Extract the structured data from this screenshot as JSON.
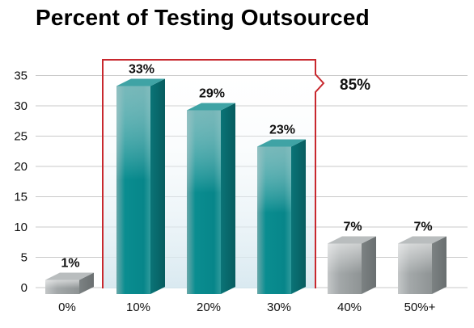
{
  "chart_data": {
    "type": "bar",
    "title": "Percent of Testing Outsourced",
    "xlabel": "",
    "ylabel": "",
    "categories": [
      "0%",
      "10%",
      "20%",
      "30%",
      "40%",
      "50%+"
    ],
    "values": [
      1,
      33,
      29,
      23,
      7,
      7
    ],
    "data_labels": [
      "1%",
      "33%",
      "29%",
      "23%",
      "7%",
      "7%"
    ],
    "ylim": [
      0,
      35
    ],
    "yticks": [
      0,
      5,
      10,
      15,
      20,
      25,
      30,
      35
    ],
    "grid": true,
    "colors": {
      "highlight": "#0b8a8c",
      "normal": "#9a9fa0",
      "bracket": "#c8282e"
    },
    "bracket": {
      "categories": [
        "10%",
        "20%",
        "30%"
      ],
      "label": "85%"
    }
  }
}
